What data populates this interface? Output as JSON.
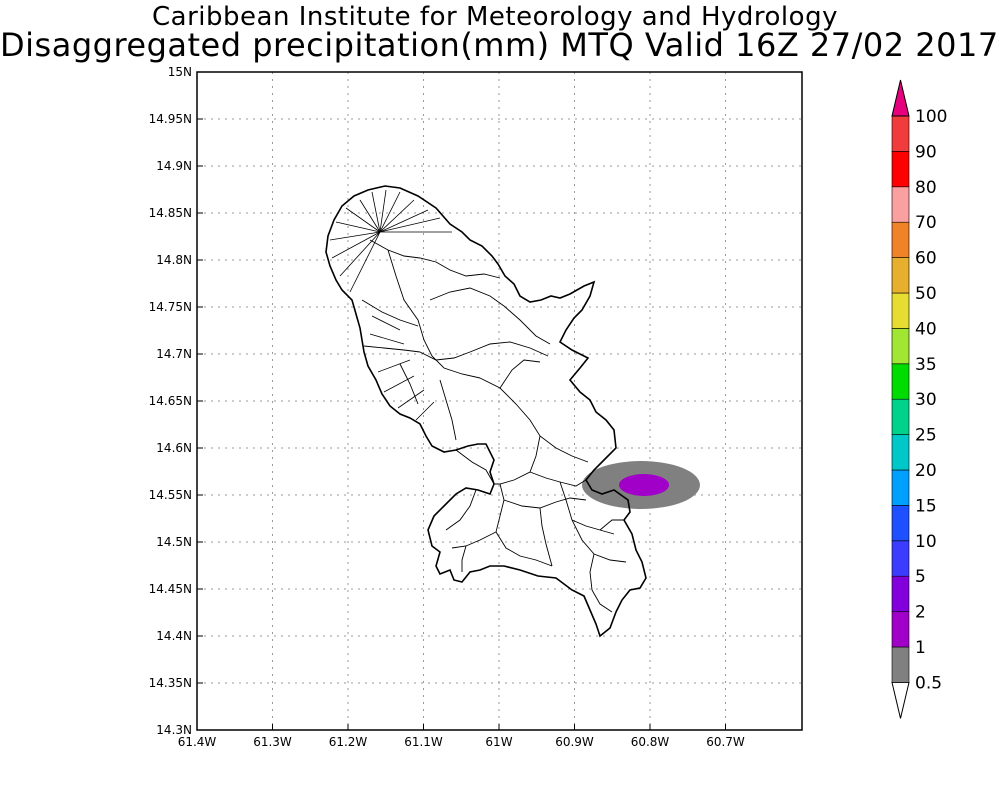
{
  "header": {
    "title_line1": "Caribbean Institute for Meteorology and Hydrology",
    "title_line2": "Disaggregated precipitation(mm) MTQ Valid 16Z 27/02 2017"
  },
  "map": {
    "lon_ticks": [
      "61.4W",
      "61.3W",
      "61.2W",
      "61.1W",
      "61W",
      "60.9W",
      "60.8W",
      "60.7W"
    ],
    "lat_ticks": [
      "15N",
      "14.95N",
      "14.9N",
      "14.85N",
      "14.8N",
      "14.75N",
      "14.7N",
      "14.65N",
      "14.6N",
      "14.55N",
      "14.5N",
      "14.45N",
      "14.4N",
      "14.35N",
      "14.3N"
    ],
    "lon_range": [
      -61.4,
      -60.6
    ],
    "lat_range": [
      14.3,
      15.0
    ],
    "grid": true,
    "outline_color": "#000000"
  },
  "colorbar": {
    "labels": [
      "0.5",
      "1",
      "2",
      "5",
      "10",
      "15",
      "20",
      "25",
      "30",
      "35",
      "40",
      "50",
      "60",
      "70",
      "80",
      "90",
      "100"
    ],
    "colors": [
      "#ffffff",
      "#808080",
      "#a000c8",
      "#8200dc",
      "#3c3cff",
      "#1e50ff",
      "#00a0ff",
      "#00c8c8",
      "#00d28c",
      "#00dc00",
      "#a0e632",
      "#e6dc32",
      "#e6af2d",
      "#f08228",
      "#faa0a0",
      "#ff0000",
      "#f03c3c",
      "#e6007d"
    ]
  },
  "precip_areas": [
    {
      "bin": "1",
      "color": "#808080",
      "lon": -60.8,
      "lat": 14.562
    },
    {
      "bin": "2",
      "color": "#a000c8",
      "lon": -60.808,
      "lat": 14.562
    }
  ]
}
